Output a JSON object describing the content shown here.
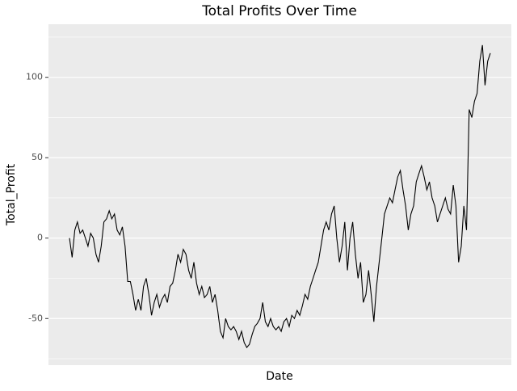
{
  "chart_data": {
    "type": "line",
    "title": "Total Profits Over Time",
    "x_label": "Date",
    "y_label": "Total_Profit",
    "series": [
      {
        "color": "#000000",
        "values": [
          0,
          -12,
          5,
          10,
          3,
          5,
          0,
          -5,
          3,
          0,
          -10,
          -15,
          -5,
          10,
          12,
          17,
          12,
          15,
          5,
          2,
          7,
          -5,
          -27,
          -27,
          -35,
          -45,
          -38,
          -45,
          -30,
          -25,
          -35,
          -48,
          -40,
          -35,
          -43,
          -38,
          -35,
          -40,
          -30,
          -28,
          -20,
          -10,
          -15,
          -7,
          -10,
          -20,
          -25,
          -15,
          -28,
          -35,
          -30,
          -37,
          -35,
          -30,
          -40,
          -35,
          -45,
          -58,
          -62,
          -50,
          -55,
          -57,
          -55,
          -58,
          -63,
          -58,
          -65,
          -68,
          -66,
          -60,
          -55,
          -53,
          -50,
          -40,
          -52,
          -55,
          -50,
          -55,
          -57,
          -55,
          -58,
          -52,
          -50,
          -55,
          -48,
          -50,
          -45,
          -48,
          -42,
          -35,
          -38,
          -30,
          -25,
          -20,
          -15,
          -5,
          5,
          10,
          5,
          15,
          20,
          0,
          -15,
          -5,
          10,
          -20,
          0,
          10,
          -10,
          -25,
          -15,
          -40,
          -35,
          -20,
          -35,
          -52,
          -30,
          -15,
          0,
          15,
          20,
          25,
          22,
          30,
          38,
          42,
          30,
          20,
          5,
          15,
          20,
          35,
          40,
          45,
          38,
          30,
          35,
          25,
          20,
          10,
          15,
          20,
          25,
          18,
          15,
          33,
          20,
          -15,
          -5,
          20,
          5,
          80,
          75,
          85,
          90,
          110,
          120,
          95,
          110,
          115
        ]
      }
    ],
    "ylim": [
      -79,
      133
    ],
    "yticks": [
      -50,
      0,
      50,
      100
    ],
    "y_minor_grid": [
      -75,
      -25,
      25,
      75,
      125
    ],
    "grid": true,
    "background": "#ebebeb"
  }
}
